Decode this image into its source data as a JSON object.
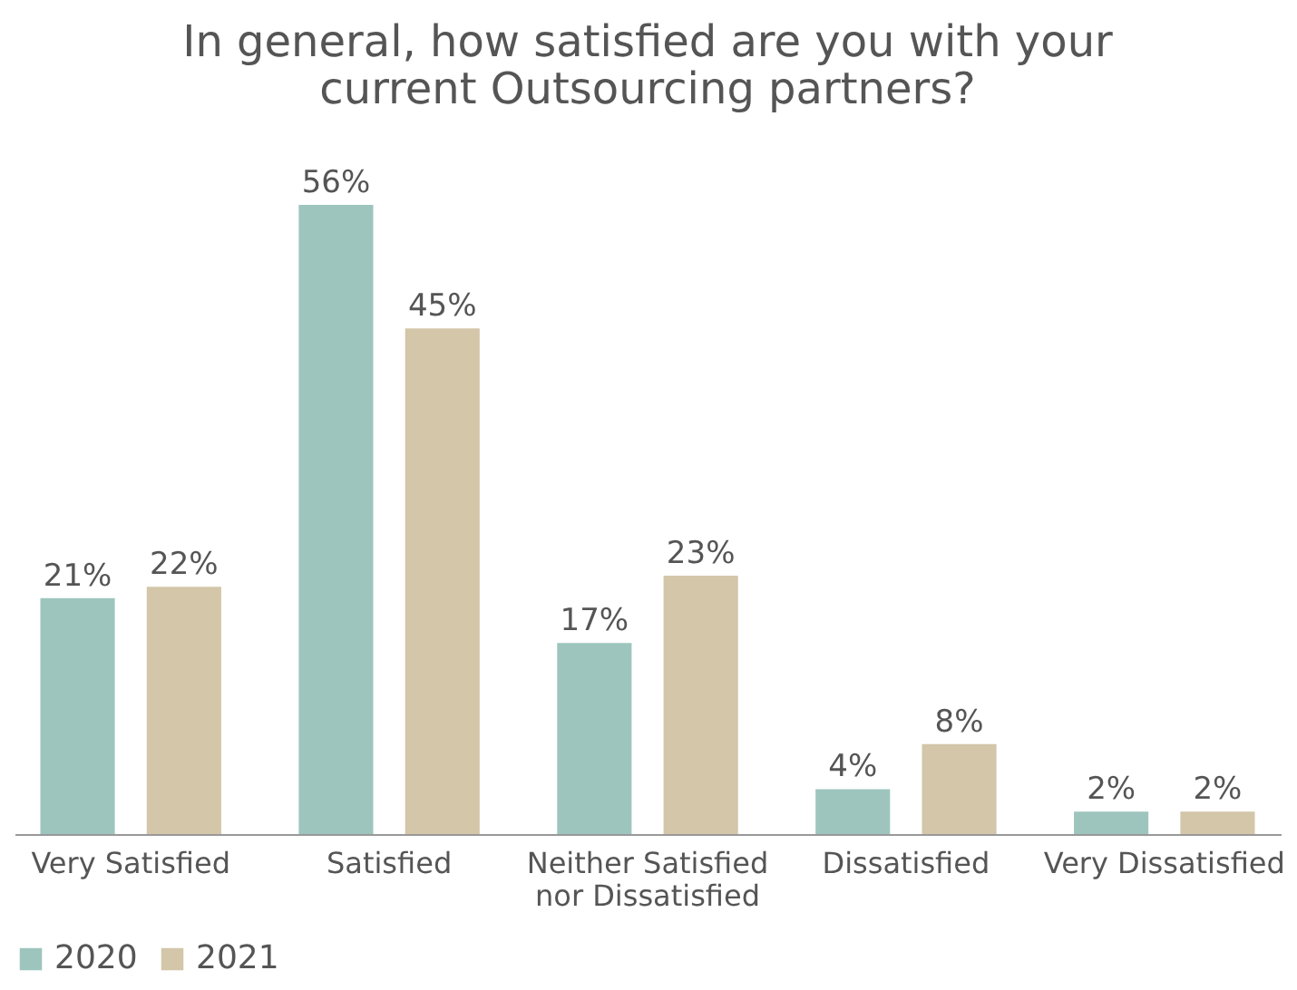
{
  "chart_data": {
    "type": "bar",
    "title": "In general, how satisfied are you with your current Outsourcing partners?",
    "categories": [
      "Very Satisfied",
      "Satisfied",
      "Neither Satisfied nor Dissatisfied",
      "Dissatisfied",
      "Very Dissatisfied"
    ],
    "series": [
      {
        "name": "2020",
        "color": "#9dc5bd",
        "values": [
          21,
          56,
          17,
          4,
          2
        ],
        "value_labels": [
          "21%",
          "56%",
          "17%",
          "4%",
          "2%"
        ]
      },
      {
        "name": "2021",
        "color": "#d3c6a9",
        "values": [
          22,
          45,
          23,
          8,
          2
        ],
        "value_labels": [
          "22%",
          "45%",
          "23%",
          "8%",
          "2%"
        ]
      }
    ],
    "legend": "bottom"
  }
}
